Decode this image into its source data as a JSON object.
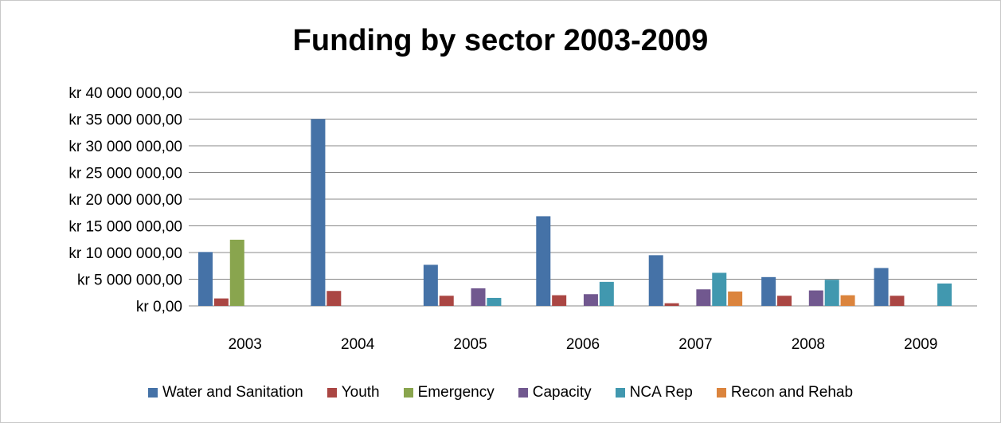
{
  "chart_data": {
    "type": "bar",
    "title": "Funding by sector 2003-2009",
    "categories": [
      "2003",
      "2004",
      "2005",
      "2006",
      "2007",
      "2008",
      "2009"
    ],
    "y_ticks": [
      "kr 0,00",
      "kr 5 000 000,00",
      "kr 10 000 000,00",
      "kr 15 000 000,00",
      "kr 20 000 000,00",
      "kr 25 000 000,00",
      "kr 30 000 000,00",
      "kr 35 000 000,00",
      "kr 40 000 000,00"
    ],
    "ylim": [
      0,
      40000000
    ],
    "grid": true,
    "legend_position": "bottom",
    "series": [
      {
        "name": "Water and Sanitation",
        "color": "#4572a7",
        "values": [
          10100000,
          35000000,
          7700000,
          16800000,
          9500000,
          5400000,
          7100000
        ]
      },
      {
        "name": "Youth",
        "color": "#aa4643",
        "values": [
          1400000,
          2800000,
          1900000,
          2000000,
          500000,
          1900000,
          1900000
        ]
      },
      {
        "name": "Emergency",
        "color": "#89a54e",
        "values": [
          12400000,
          0,
          0,
          0,
          0,
          0,
          0
        ]
      },
      {
        "name": "Capacity",
        "color": "#71588f",
        "values": [
          0,
          0,
          3300000,
          2200000,
          3100000,
          2900000,
          0
        ]
      },
      {
        "name": "NCA Rep",
        "color": "#4198af",
        "values": [
          0,
          0,
          1500000,
          4500000,
          6200000,
          4900000,
          4200000
        ]
      },
      {
        "name": "Recon and Rehab",
        "color": "#db843d",
        "values": [
          0,
          0,
          0,
          0,
          2700000,
          2000000,
          0
        ]
      }
    ]
  }
}
